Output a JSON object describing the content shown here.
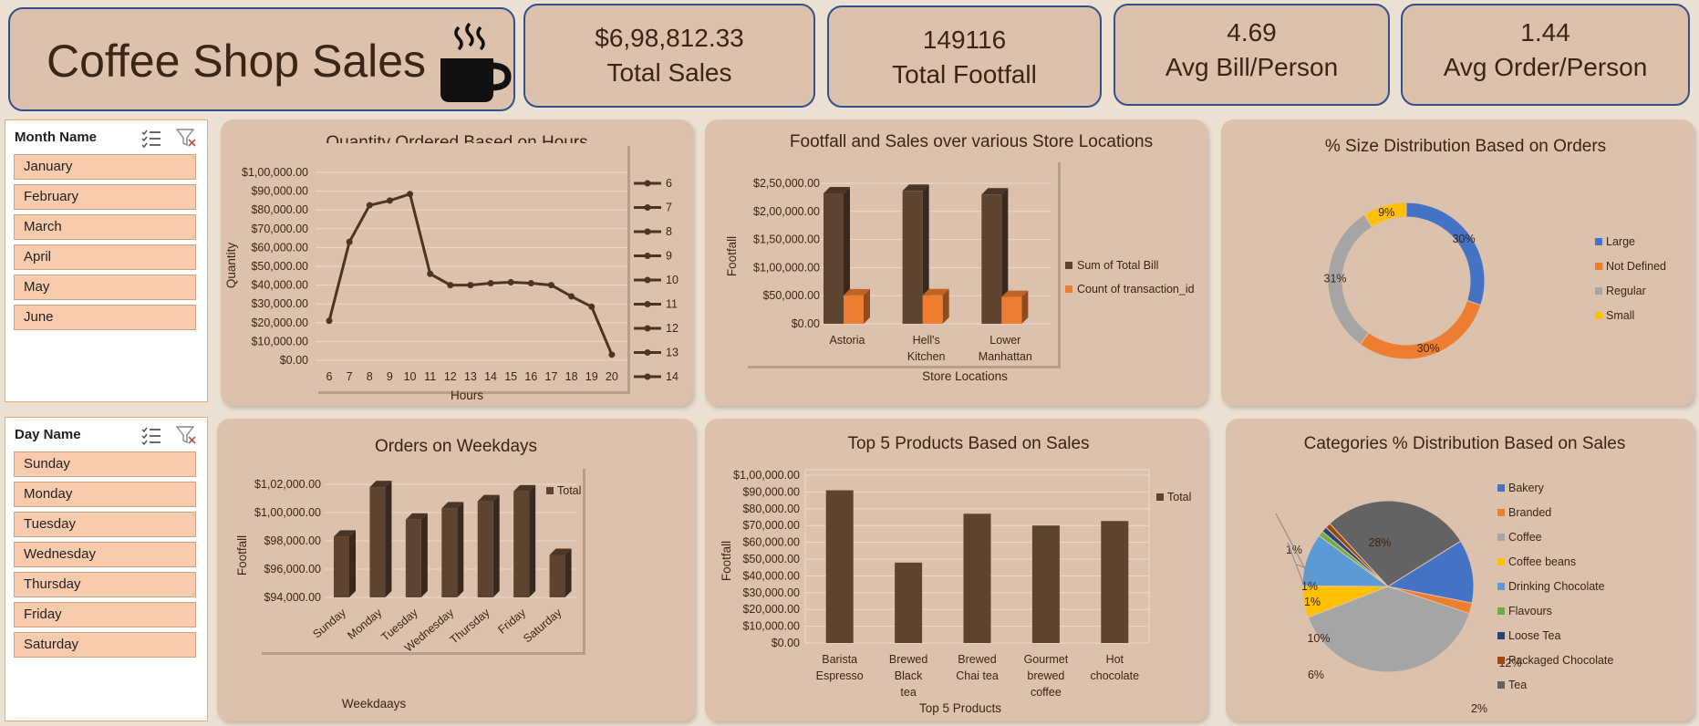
{
  "header": {
    "title": "Coffee Shop Sales"
  },
  "kpis": [
    {
      "value": "$6,98,812.33",
      "label": "Total Sales"
    },
    {
      "value": "149116",
      "label": "Total Footfall"
    },
    {
      "value": "4.69",
      "label": "Avg Bill/Person"
    },
    {
      "value": "1.44",
      "label": "Avg Order/Person"
    }
  ],
  "slicers": {
    "month": {
      "title": "Month Name",
      "items": [
        "January",
        "February",
        "March",
        "April",
        "May",
        "June"
      ]
    },
    "day": {
      "title": "Day Name",
      "items": [
        "Sunday",
        "Monday",
        "Tuesday",
        "Wednesday",
        "Thursday",
        "Friday",
        "Saturday"
      ]
    }
  },
  "colors": {
    "brown": "#5c4431",
    "orange": "#ed7d31",
    "blue": "#4472c4",
    "gray": "#a5a5a5",
    "yellow": "#ffc000"
  },
  "icons": {
    "cup": "coffee-cup-icon",
    "multi_select": "multi-select-icon",
    "clear_filter": "clear-filter-icon"
  },
  "chart_data": [
    {
      "id": "hours",
      "type": "line",
      "title": "Quantity Ordered Based on Hours",
      "xlabel": "Hours",
      "ylabel": "Quantity",
      "x": [
        6,
        7,
        8,
        9,
        10,
        11,
        12,
        13,
        14,
        15,
        16,
        17,
        18,
        19,
        20
      ],
      "values": [
        21000,
        63000,
        82500,
        85000,
        88500,
        46000,
        40000,
        40000,
        41000,
        41500,
        41000,
        40000,
        34000,
        28500,
        3000
      ],
      "ylim": [
        0,
        100000
      ],
      "yticks": [
        "$0.00",
        "$10,000.00",
        "$20,000.00",
        "$30,000.00",
        "$40,000.00",
        "$50,000.00",
        "$60,000.00",
        "$70,000.00",
        "$80,000.00",
        "$90,000.00",
        "$1,00,000.00"
      ],
      "legend": [
        "6",
        "7",
        "8",
        "9",
        "10",
        "11",
        "12",
        "13",
        "14"
      ]
    },
    {
      "id": "locations",
      "type": "bar",
      "title": "Footfall and Sales over various Store Locations",
      "xlabel": "Store Locations",
      "ylabel": "Footfall",
      "categories": [
        "Astoria",
        "Hell's Kitchen",
        "Lower Manhattan"
      ],
      "series": [
        {
          "name": "Sum of Total Bill",
          "values": [
            232243,
            236511,
            230057
          ]
        },
        {
          "name": "Count of transaction_id",
          "values": [
            50599,
            50735,
            47782
          ]
        }
      ],
      "ylim": [
        0,
        250000
      ],
      "yticks": [
        "$0.00",
        "$50,000.00",
        "$1,00,000.00",
        "$1,50,000.00",
        "$2,00,000.00",
        "$2,50,000.00"
      ]
    },
    {
      "id": "size",
      "type": "pie",
      "title": "% Size Distribution Based on Orders",
      "labels": [
        "Large",
        "Not Defined",
        "Regular",
        "Small"
      ],
      "values": [
        30,
        30,
        31,
        9
      ],
      "value_labels": [
        "30%",
        "30%",
        "31%",
        "9%"
      ]
    },
    {
      "id": "weekdays",
      "type": "bar",
      "title": "Orders on Weekdays",
      "xlabel": "Weekdaays",
      "ylabel": "Footfall",
      "categories": [
        "Sunday",
        "Monday",
        "Tuesday",
        "Wednesday",
        "Thursday",
        "Friday",
        "Saturday"
      ],
      "series": [
        {
          "name": "Total",
          "values": [
            98300,
            101800,
            99500,
            100300,
            100800,
            101500,
            97000
          ]
        }
      ],
      "ylim": [
        94000,
        102000
      ],
      "yticks": [
        "$94,000.00",
        "$96,000.00",
        "$98,000.00",
        "$1,00,000.00",
        "$1,02,000.00"
      ]
    },
    {
      "id": "products",
      "type": "bar",
      "title": "Top 5 Products Based on Sales",
      "xlabel": "Top 5  Products",
      "ylabel": "Footfall",
      "categories": [
        "Barista Espresso",
        "Brewed Black tea",
        "Brewed Chai tea",
        "Gourmet brewed coffee",
        "Hot chocolate"
      ],
      "series": [
        {
          "name": "Total",
          "values": [
            91000,
            47900,
            77000,
            70000,
            72700
          ]
        }
      ],
      "ylim": [
        0,
        100000
      ],
      "yticks": [
        "$0.00",
        "$10,000.00",
        "$20,000.00",
        "$30,000.00",
        "$40,000.00",
        "$50,000.00",
        "$60,000.00",
        "$70,000.00",
        "$80,000.00",
        "$90,000.00",
        "$1,00,000.00"
      ]
    },
    {
      "id": "categories",
      "type": "pie",
      "title": "Categories % Distribution Based on Sales",
      "labels": [
        "Bakery",
        "Branded",
        "Coffee",
        "Coffee beans",
        "Drinking Chocolate",
        "Flavours",
        "Loose Tea",
        "Packaged Chocolate",
        "Tea"
      ],
      "values": [
        12,
        2,
        39,
        6,
        10,
        1,
        1,
        1,
        28
      ],
      "value_labels": [
        "12%",
        "2%",
        "39%",
        "6%",
        "10%",
        "1%",
        "1%",
        "1%",
        "28%"
      ]
    }
  ]
}
